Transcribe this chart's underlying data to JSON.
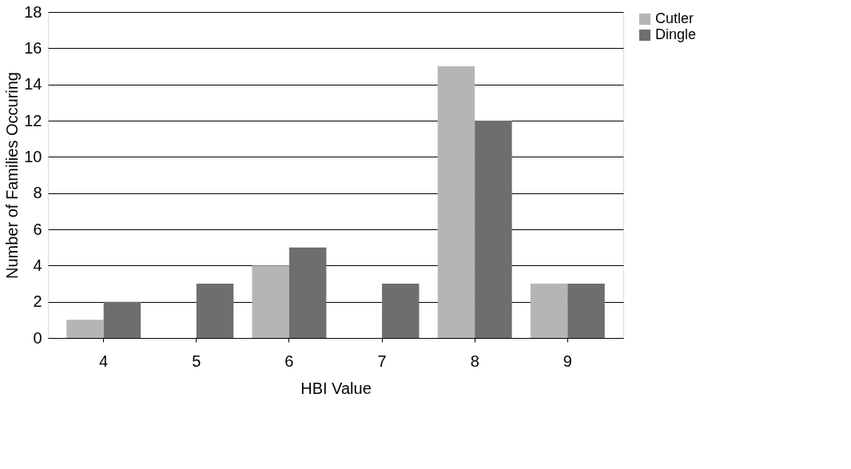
{
  "chart_data": {
    "type": "bar",
    "xlabel": "HBI Value",
    "ylabel": "Number of Families Occuring",
    "categories": [
      "4",
      "5",
      "6",
      "7",
      "8",
      "9"
    ],
    "series": [
      {
        "name": "Cutler",
        "color": "#b5b5b5",
        "values": [
          1,
          0,
          4,
          0,
          15,
          3
        ]
      },
      {
        "name": "Dingle",
        "color": "#6e6e6e",
        "values": [
          2,
          3,
          5,
          3,
          12,
          3
        ]
      }
    ],
    "ylim": [
      0,
      18
    ],
    "yticks": [
      0,
      2,
      4,
      6,
      8,
      10,
      12,
      14,
      16,
      18
    ],
    "grid": "y",
    "legend": "right"
  }
}
